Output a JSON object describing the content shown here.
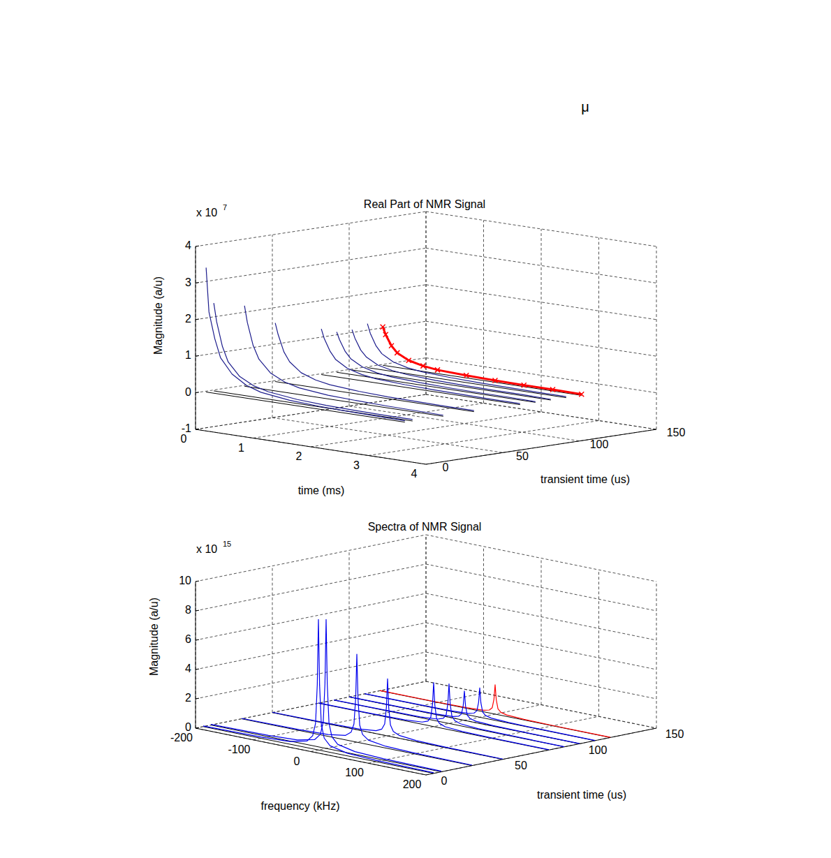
{
  "chart_data": [
    {
      "type": "waterfall",
      "title": "Real Part of NMR Signal",
      "xlabel": "time (ms)",
      "ylabel": "transient time (us)",
      "zlabel": "Magnitude (a/u)",
      "zscale_label": "x 10",
      "zscale_exponent": "7",
      "annotations": [
        "μ"
      ],
      "xlim": [
        0,
        4
      ],
      "xticks": [
        0,
        1,
        2,
        3,
        4
      ],
      "ylim": [
        0,
        150
      ],
      "yticks": [
        0,
        50,
        100,
        150
      ],
      "zlim": [
        -1,
        4
      ],
      "zticks": [
        -1,
        0,
        1,
        2,
        3,
        4
      ],
      "grid": true,
      "x": [
        0.05,
        0.1,
        0.2,
        0.3,
        0.5,
        0.75,
        1,
        1.5,
        2,
        2.5,
        3,
        3.5
      ],
      "series": [
        {
          "transient_time": 5,
          "color": "#1c1c8c",
          "values": [
            3.4,
            2.2,
            1.5,
            1.0,
            0.6,
            0.35,
            0.22,
            0.12,
            0.08,
            0.06,
            0.05,
            0.04
          ]
        },
        {
          "transient_time": 10,
          "color": "#1c1c8c",
          "values": [
            2.4,
            1.9,
            1.25,
            0.85,
            0.5,
            0.3,
            0.2,
            0.11,
            0.07,
            0.05,
            0.04,
            0.04
          ]
        },
        {
          "transient_time": 30,
          "color": "#1c1c8c",
          "values": [
            2.2,
            1.75,
            1.15,
            0.8,
            0.47,
            0.28,
            0.18,
            0.1,
            0.07,
            0.05,
            0.04,
            0.03
          ]
        },
        {
          "transient_time": 50,
          "color": "#1c1c8c",
          "values": [
            1.6,
            1.3,
            0.85,
            0.6,
            0.35,
            0.21,
            0.14,
            0.08,
            0.05,
            0.04,
            0.03,
            0.03
          ]
        },
        {
          "transient_time": 80,
          "color": "#1c1c8c",
          "values": [
            1.25,
            1.0,
            0.68,
            0.47,
            0.28,
            0.17,
            0.11,
            0.07,
            0.05,
            0.04,
            0.03,
            0.03
          ]
        },
        {
          "transient_time": 90,
          "color": "#1c1c8c",
          "values": [
            1.1,
            0.9,
            0.6,
            0.42,
            0.25,
            0.15,
            0.1,
            0.06,
            0.04,
            0.03,
            0.03,
            0.02
          ]
        },
        {
          "transient_time": 100,
          "color": "#1c1c8c",
          "values": [
            1.1,
            0.88,
            0.58,
            0.41,
            0.24,
            0.15,
            0.1,
            0.06,
            0.04,
            0.03,
            0.03,
            0.02
          ]
        },
        {
          "transient_time": 110,
          "color": "#1c1c8c",
          "values": [
            1.2,
            0.95,
            0.63,
            0.44,
            0.26,
            0.16,
            0.11,
            0.07,
            0.05,
            0.04,
            0.03,
            0.03
          ]
        },
        {
          "transient_time": 120,
          "color": "#ff0000",
          "marker": "x",
          "values": [
            1.05,
            0.85,
            0.57,
            0.4,
            0.24,
            0.15,
            0.1,
            0.07,
            0.05,
            0.04,
            0.04,
            0.03
          ]
        }
      ]
    },
    {
      "type": "waterfall",
      "title": "Spectra of NMR Signal",
      "xlabel": "frequency (kHz)",
      "ylabel": "transient time (us)",
      "zlabel": "Magnitude (a/u)",
      "zscale_label": "x 10",
      "zscale_exponent": "15",
      "xlim": [
        -200,
        200
      ],
      "xticks": [
        -200,
        -100,
        0,
        100,
        200
      ],
      "ylim": [
        0,
        150
      ],
      "yticks": [
        0,
        50,
        100,
        150
      ],
      "zlim": [
        0,
        10
      ],
      "zticks": [
        0,
        2,
        4,
        6,
        8,
        10
      ],
      "grid": true,
      "x": [
        -200,
        -100,
        -50,
        -20,
        -10,
        -5,
        -2,
        0,
        2,
        5,
        10,
        20,
        50,
        100,
        200
      ],
      "series": [
        {
          "transient_time": 5,
          "color": "#0000ee",
          "values": [
            0.04,
            0.09,
            0.18,
            0.45,
            0.89,
            1.78,
            4.45,
            8.9,
            4.45,
            1.78,
            0.89,
            0.45,
            0.18,
            0.09,
            0.04
          ]
        },
        {
          "transient_time": 10,
          "color": "#0000ee",
          "values": [
            0.04,
            0.09,
            0.18,
            0.44,
            0.88,
            1.76,
            4.4,
            8.8,
            4.4,
            1.76,
            0.88,
            0.44,
            0.18,
            0.09,
            0.04
          ]
        },
        {
          "transient_time": 30,
          "color": "#0000ee",
          "values": [
            0.03,
            0.06,
            0.12,
            0.3,
            0.6,
            1.2,
            3.0,
            6.0,
            3.0,
            1.2,
            0.6,
            0.3,
            0.12,
            0.06,
            0.03
          ]
        },
        {
          "transient_time": 50,
          "color": "#0000ee",
          "values": [
            0.02,
            0.04,
            0.08,
            0.2,
            0.39,
            0.78,
            1.95,
            3.9,
            1.95,
            0.78,
            0.39,
            0.2,
            0.08,
            0.04,
            0.02
          ]
        },
        {
          "transient_time": 80,
          "color": "#0000ee",
          "values": [
            0.02,
            0.03,
            0.06,
            0.15,
            0.3,
            0.6,
            1.5,
            3.0,
            1.5,
            0.6,
            0.3,
            0.15,
            0.06,
            0.03,
            0.02
          ]
        },
        {
          "transient_time": 90,
          "color": "#0000ee",
          "values": [
            0.01,
            0.03,
            0.05,
            0.14,
            0.27,
            0.54,
            1.35,
            2.7,
            1.35,
            0.54,
            0.27,
            0.14,
            0.05,
            0.03,
            0.01
          ]
        },
        {
          "transient_time": 100,
          "color": "#0000ee",
          "values": [
            0.01,
            0.02,
            0.04,
            0.1,
            0.2,
            0.4,
            1.0,
            2.0,
            1.0,
            0.4,
            0.2,
            0.1,
            0.04,
            0.02,
            0.01
          ]
        },
        {
          "transient_time": 110,
          "color": "#0000ee",
          "values": [
            0.01,
            0.02,
            0.04,
            0.1,
            0.2,
            0.4,
            1.0,
            2.0,
            1.0,
            0.4,
            0.2,
            0.1,
            0.04,
            0.02,
            0.01
          ]
        },
        {
          "transient_time": 120,
          "color": "#ff0000",
          "values": [
            0.01,
            0.02,
            0.04,
            0.1,
            0.2,
            0.4,
            1.0,
            2.0,
            1.0,
            0.4,
            0.2,
            0.1,
            0.04,
            0.02,
            0.01
          ]
        }
      ]
    }
  ]
}
